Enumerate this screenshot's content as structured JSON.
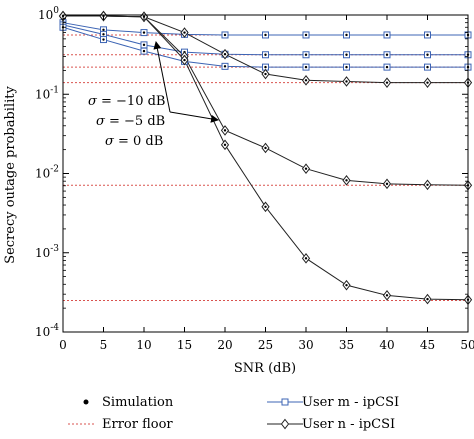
{
  "chart_data": {
    "type": "line",
    "xlabel": "SNR (dB)",
    "ylabel": "Secrecy outage probability",
    "xlim": [
      0,
      50
    ],
    "ylim": [
      0.0001,
      1
    ],
    "yscale": "log",
    "x_ticks": [
      0,
      5,
      10,
      15,
      20,
      25,
      30,
      35,
      40,
      45,
      50
    ],
    "y_ticks": [
      {
        "value": 1,
        "base": "10",
        "exp": "0"
      },
      {
        "value": 0.1,
        "base": "10",
        "exp": "-1"
      },
      {
        "value": 0.01,
        "base": "10",
        "exp": "-2"
      },
      {
        "value": 0.001,
        "base": "10",
        "exp": "-3"
      },
      {
        "value": 0.0001,
        "base": "10",
        "exp": "-4"
      }
    ],
    "x": [
      0,
      5,
      10,
      15,
      20,
      25,
      30,
      35,
      40,
      45,
      50
    ],
    "series": [
      {
        "name": "User m - ipCSI",
        "group": "m",
        "values": [
          0.8,
          0.65,
          0.6,
          0.57,
          0.56,
          0.56,
          0.56,
          0.56,
          0.56,
          0.56,
          0.56
        ]
      },
      {
        "name": "User m - ipCSI",
        "group": "m",
        "values": [
          0.75,
          0.57,
          0.42,
          0.34,
          0.32,
          0.315,
          0.315,
          0.315,
          0.315,
          0.315,
          0.315
        ]
      },
      {
        "name": "User m - ipCSI",
        "group": "m",
        "values": [
          0.7,
          0.49,
          0.35,
          0.26,
          0.225,
          0.22,
          0.22,
          0.22,
          0.22,
          0.22,
          0.22
        ]
      },
      {
        "name": "User n - ipCSI",
        "group": "n",
        "values": [
          0.97,
          0.97,
          0.95,
          0.6,
          0.32,
          0.18,
          0.15,
          0.145,
          0.14,
          0.14,
          0.14
        ]
      },
      {
        "name": "User n - ipCSI",
        "group": "n",
        "values": [
          0.97,
          0.97,
          0.95,
          0.3,
          0.035,
          0.021,
          0.0115,
          0.0082,
          0.0074,
          0.0072,
          0.0071
        ]
      },
      {
        "name": "User n - ipCSI",
        "group": "n",
        "values": [
          0.97,
          0.97,
          0.95,
          0.27,
          0.023,
          0.0038,
          0.00085,
          0.00039,
          0.00029,
          0.00026,
          0.000255
        ]
      }
    ],
    "error_floors": [
      0.56,
      0.315,
      0.22,
      0.14,
      0.0071,
      0.00025
    ],
    "annotations": [
      {
        "sigma": "σ",
        "text": " = −10 dB"
      },
      {
        "sigma": "σ",
        "text": " = −5 dB"
      },
      {
        "sigma": "σ",
        "text": " = 0 dB"
      }
    ],
    "legend": {
      "placement": "bottom",
      "items": [
        {
          "label": "Simulation",
          "marker": "dot"
        },
        {
          "label": "User m - ipCSI",
          "marker": "square"
        },
        {
          "label": "Error floor",
          "marker": "dotted-line"
        },
        {
          "label": "User n - ipCSI",
          "marker": "diamond"
        }
      ]
    },
    "colors": {
      "user_m": "#3c64b4",
      "user_n": "#222222",
      "error_floor": "#d9534f",
      "axis": "#000000"
    },
    "grid": false
  }
}
